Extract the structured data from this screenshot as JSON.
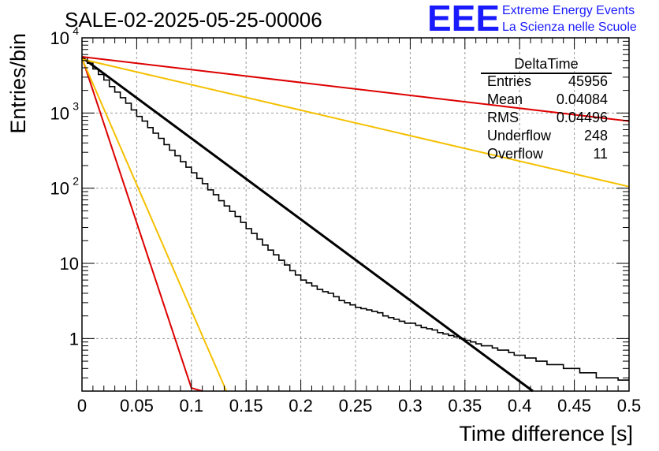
{
  "chart_data": {
    "type": "line",
    "title": "SALE-02-2025-05-25-00006",
    "xlabel": "Time difference [s]",
    "ylabel": "Entries/bin",
    "xlim": [
      0,
      0.5
    ],
    "ylim": [
      0.2,
      10000
    ],
    "yscale": "log",
    "grid": true,
    "x_ticks": [
      {
        "v": 0,
        "label": "0"
      },
      {
        "v": 0.05,
        "label": "0.05"
      },
      {
        "v": 0.1,
        "label": "0.1"
      },
      {
        "v": 0.15,
        "label": "0.15"
      },
      {
        "v": 0.2,
        "label": "0.2"
      },
      {
        "v": 0.25,
        "label": "0.25"
      },
      {
        "v": 0.3,
        "label": "0.3"
      },
      {
        "v": 0.35,
        "label": "0.35"
      },
      {
        "v": 0.4,
        "label": "0.4"
      },
      {
        "v": 0.45,
        "label": "0.45"
      },
      {
        "v": 0.5,
        "label": "0.5"
      }
    ],
    "y_ticks": [
      {
        "v": 1,
        "base": "1",
        "exp": ""
      },
      {
        "v": 10,
        "base": "10",
        "exp": ""
      },
      {
        "v": 100,
        "base": "10",
        "exp": "2"
      },
      {
        "v": 1000,
        "base": "10",
        "exp": "3"
      },
      {
        "v": 10000,
        "base": "10",
        "exp": "4"
      }
    ],
    "histogram": {
      "name": "DeltaTime",
      "bin_width": 0.005,
      "values": [
        5500,
        4600,
        3850,
        3250,
        2750,
        2250,
        1900,
        1600,
        1350,
        1100,
        900,
        780,
        640,
        540,
        460,
        380,
        320,
        270,
        225,
        190,
        160,
        135,
        115,
        95,
        82,
        68,
        58,
        49,
        42,
        35,
        29,
        25,
        21,
        17.5,
        15,
        13,
        11,
        9.5,
        8,
        7,
        6,
        5.5,
        5,
        4.5,
        4.2,
        4,
        3.6,
        3.2,
        3,
        2.8,
        2.6,
        2.5,
        2.4,
        2.3,
        2.2,
        2,
        1.9,
        1.8,
        1.7,
        1.6,
        1.6,
        1.5,
        1.4,
        1.35,
        1.3,
        1.2,
        1.15,
        1.1,
        1.05,
        1,
        0.95,
        0.9,
        0.85,
        0.8,
        0.8,
        0.75,
        0.7,
        0.7,
        0.65,
        0.6,
        0.6,
        0.55,
        0.55,
        0.5,
        0.5,
        0.45,
        0.45,
        0.45,
        0.4,
        0.4,
        0.4,
        0.35,
        0.35,
        0.35,
        0.3,
        0.3,
        0.3,
        0.3,
        0.28,
        0.28
      ]
    },
    "fits": [
      {
        "color": "#000000",
        "x": [
          0,
          0.412
        ],
        "y": [
          5500,
          0.2
        ],
        "width": 3
      },
      {
        "color": "#dd0000",
        "x": [
          0,
          0.5
        ],
        "y": [
          5600,
          780
        ],
        "width": 2
      },
      {
        "color": "#dd0000",
        "x": [
          0,
          0.1,
          0.11
        ],
        "y": [
          5500,
          0.22,
          0.2
        ],
        "width": 2
      },
      {
        "color": "#f5c000",
        "x": [
          0,
          0.5
        ],
        "y": [
          5200,
          105
        ],
        "width": 2
      },
      {
        "color": "#f5c000",
        "x": [
          0,
          0.132
        ],
        "y": [
          5300,
          0.2
        ],
        "width": 2
      }
    ],
    "stats": {
      "title": "DeltaTime",
      "rows": [
        {
          "label": "Entries",
          "value": "45956"
        },
        {
          "label": "Mean",
          "value": "0.04084"
        },
        {
          "label": "RMS",
          "value": "0.04496"
        },
        {
          "label": "Underflow",
          "value": "248"
        },
        {
          "label": "Overflow",
          "value": "11"
        }
      ]
    }
  },
  "logo": {
    "big": "EEE",
    "line1": "Extreme Energy Events",
    "line2": "La Scienza nelle Scuole"
  }
}
